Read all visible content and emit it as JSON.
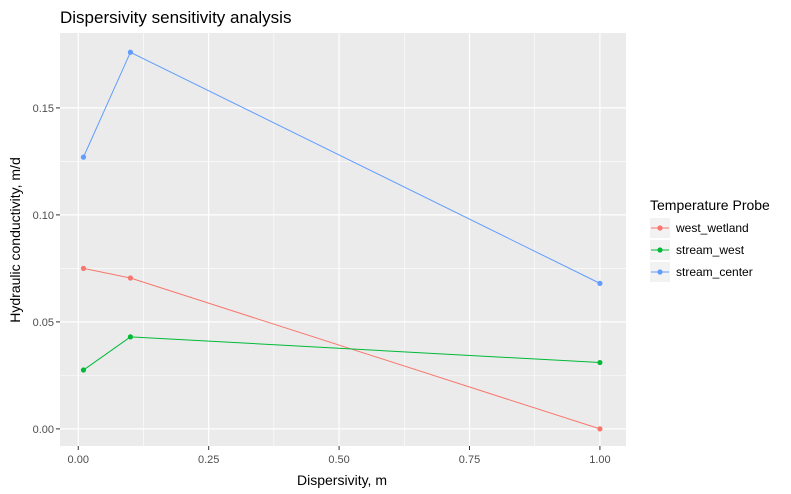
{
  "chart_data": {
    "type": "line",
    "title": "Dispersivity sensitivity analysis",
    "xlabel": "Dispersivity, m",
    "ylabel": "Hydraulic conductivity, m/d",
    "xlim": [
      -0.035,
      1.05
    ],
    "ylim": [
      -0.008,
      0.185
    ],
    "x_ticks": [
      0.0,
      0.25,
      0.5,
      0.75,
      1.0
    ],
    "x_tick_labels": [
      "0.00",
      "0.25",
      "0.50",
      "0.75",
      "1.00"
    ],
    "y_ticks": [
      0.0,
      0.05,
      0.1,
      0.15
    ],
    "y_tick_labels": [
      "0.00",
      "0.05",
      "0.10",
      "0.15"
    ],
    "grid": true,
    "background": "#ebebeb",
    "legend_title": "Temperature Probe",
    "legend_position": "right",
    "series": [
      {
        "name": "west_wetland",
        "color": "#f8766d",
        "x": [
          0.01,
          0.1,
          1.0
        ],
        "y": [
          0.075,
          0.0705,
          0.0
        ]
      },
      {
        "name": "stream_west",
        "color": "#00ba38",
        "x": [
          0.01,
          0.1,
          1.0
        ],
        "y": [
          0.0275,
          0.043,
          0.031
        ]
      },
      {
        "name": "stream_center",
        "color": "#619cff",
        "x": [
          0.01,
          0.1,
          1.0
        ],
        "y": [
          0.127,
          0.176,
          0.068
        ]
      }
    ]
  }
}
